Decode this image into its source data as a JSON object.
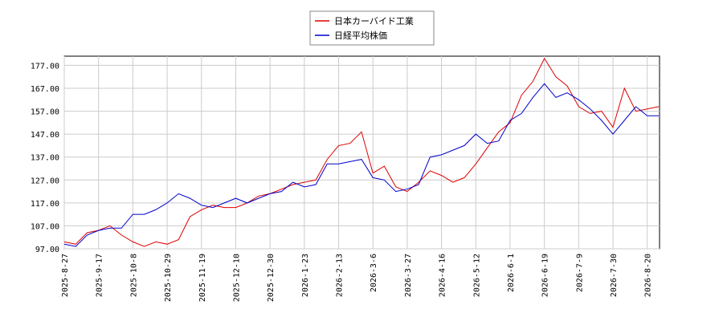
{
  "chart_data": {
    "type": "line",
    "categories": [
      "2025-8-27",
      null,
      null,
      "2025-9-17",
      null,
      null,
      "2025-10-8",
      null,
      null,
      "2025-10-29",
      null,
      null,
      "2025-11-19",
      null,
      null,
      "2025-12-10",
      null,
      null,
      "2025-12-30",
      null,
      null,
      "2026-1-23",
      null,
      null,
      "2026-2-13",
      null,
      null,
      "2026-3-6",
      null,
      null,
      "2026-3-27",
      null,
      null,
      "2026-4-16",
      null,
      null,
      "2026-5-12",
      null,
      null,
      "2026-6-1",
      null,
      null,
      "2026-6-19",
      null,
      null,
      "2026-7-9",
      null,
      null,
      "2026-7-30",
      null,
      null,
      "2026-8-20",
      null
    ],
    "series": [
      {
        "name": "日本カーバイド工業",
        "color": "#dd0000",
        "values": [
          100,
          99,
          104,
          105,
          107,
          103,
          100,
          98,
          100,
          99,
          101,
          111,
          114,
          116,
          115,
          115,
          117,
          120,
          121,
          123,
          125,
          126,
          127,
          136,
          142,
          143,
          148,
          130,
          133,
          124,
          122,
          126,
          131,
          129,
          126,
          128,
          134,
          141,
          148,
          152,
          164,
          170,
          180,
          172,
          168,
          159,
          156,
          157,
          150,
          167,
          157,
          158,
          159
        ]
      },
      {
        "name": "日経平均株価",
        "color": "#0000cc",
        "values": [
          99,
          98,
          103,
          105,
          106,
          106,
          112,
          112,
          114,
          117,
          121,
          119,
          116,
          115,
          117,
          119,
          117,
          119,
          121,
          122,
          126,
          124,
          125,
          134,
          134,
          135,
          136,
          128,
          127,
          122,
          123,
          125,
          137,
          138,
          140,
          142,
          147,
          143,
          144,
          153,
          156,
          163,
          169,
          163,
          165,
          162,
          158,
          153,
          147,
          153,
          159,
          155,
          155
        ]
      }
    ],
    "ylim": [
      97,
      181
    ],
    "yticks": [
      {
        "value": 97,
        "label": "97.00"
      },
      {
        "value": 107,
        "label": "107.00"
      },
      {
        "value": 117,
        "label": "117.00"
      },
      {
        "value": 127,
        "label": "127.00"
      },
      {
        "value": 137,
        "label": "137.00"
      },
      {
        "value": 147,
        "label": "147.00"
      },
      {
        "value": 157,
        "label": "157.00"
      },
      {
        "value": 167,
        "label": "167.00"
      },
      {
        "value": 177,
        "label": "177.00"
      }
    ],
    "grid": true,
    "legend": "top"
  }
}
